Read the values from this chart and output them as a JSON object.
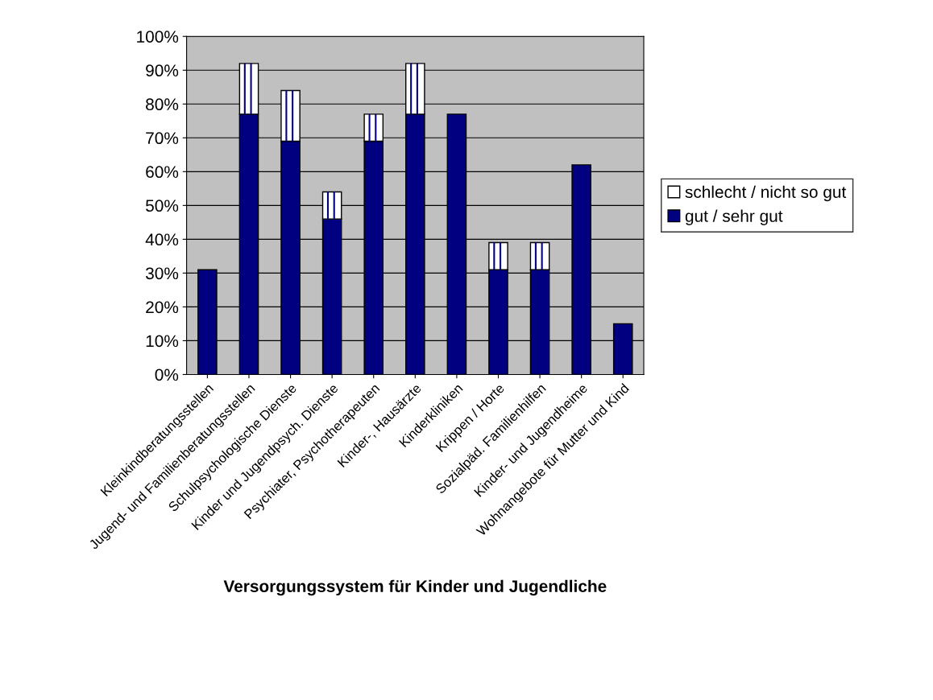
{
  "chart_data": {
    "type": "bar",
    "stacked": true,
    "xlabel": "Versorgungssystem für Kinder und Jugendliche",
    "categories": [
      "Kleinkindberatungsstellen",
      "Jugend- und Familienberatungsstellen",
      "Schulpsychologische Dienste",
      "Kinder und Jugendpsych. Dienste",
      "Psychiater, Psychotherapeuten",
      "Kinder-, Hausärzte",
      "Kinderkliniken",
      "Krippen / Horte",
      "Sozialpäd. Familienhilfen",
      "Kinder- und Jugendheime",
      "Wohnangebote für Mutter und Kind"
    ],
    "series": [
      {
        "name": "gut / sehr gut",
        "color": "#000080",
        "values": [
          31,
          77,
          69,
          46,
          69,
          77,
          77,
          31,
          31,
          62,
          15
        ]
      },
      {
        "name": "schlecht / nicht so gut",
        "color": "#ffffff",
        "values": [
          0,
          15,
          15,
          8,
          8,
          15,
          0,
          8,
          8,
          0,
          0
        ]
      }
    ],
    "ylim": [
      0,
      100
    ],
    "yticks": [
      {
        "value": 0,
        "label": "0%"
      },
      {
        "value": 10,
        "label": "10%"
      },
      {
        "value": 20,
        "label": "20%"
      },
      {
        "value": 30,
        "label": "30%"
      },
      {
        "value": 40,
        "label": "40%"
      },
      {
        "value": 50,
        "label": "50%"
      },
      {
        "value": 60,
        "label": "60%"
      },
      {
        "value": 70,
        "label": "70%"
      },
      {
        "value": 80,
        "label": "80%"
      },
      {
        "value": 90,
        "label": "90%"
      },
      {
        "value": 100,
        "label": "100%"
      }
    ],
    "grid": "y",
    "legend": "right"
  }
}
